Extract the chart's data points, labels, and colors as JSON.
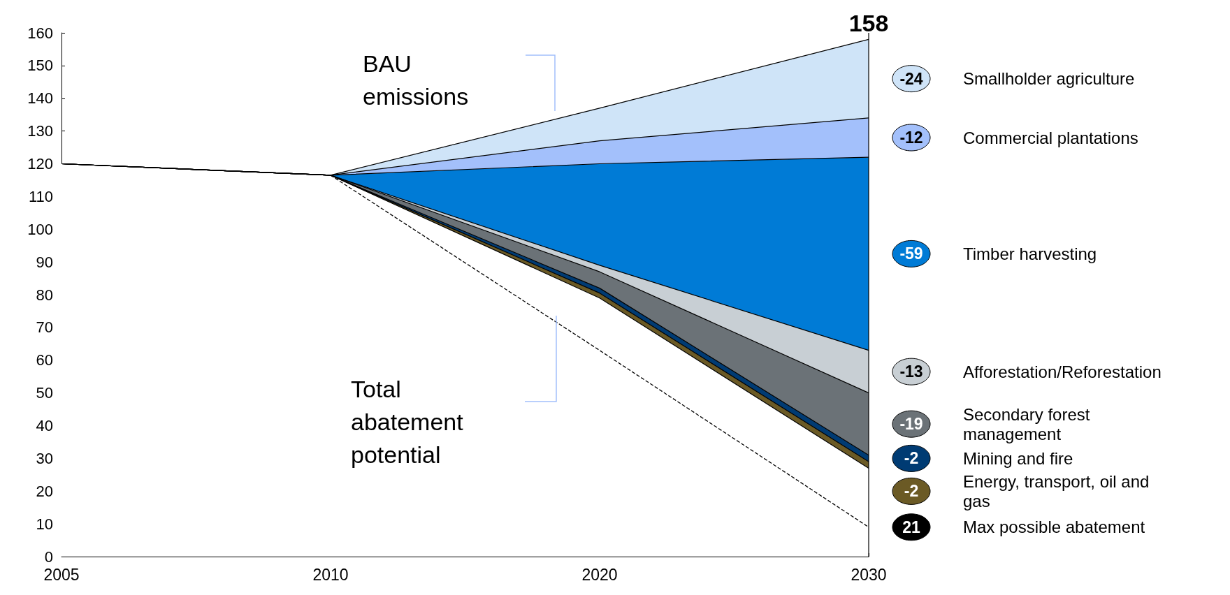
{
  "chart_data": {
    "type": "area",
    "stacked": true,
    "categories": [
      "2005",
      "2010",
      "2020",
      "2030"
    ],
    "ylim": [
      0,
      160
    ],
    "yticks": [
      0,
      10,
      20,
      30,
      40,
      50,
      60,
      70,
      80,
      90,
      100,
      110,
      120,
      130,
      140,
      150,
      160
    ],
    "grid": false,
    "series": [
      {
        "color": "#ffffff",
        "values": [
          120,
          116.5,
          79,
          27
        ]
      },
      {
        "name": "Energy, transport, oil and gas",
        "color": "#6b5a25",
        "values": [
          0,
          0,
          1.5,
          2
        ]
      },
      {
        "name": "Mining and fire",
        "color": "#003b73",
        "values": [
          0,
          0,
          1.5,
          2
        ]
      },
      {
        "name": "Secondary forest management",
        "color": "#6b7277",
        "values": [
          0,
          0,
          5,
          19
        ]
      },
      {
        "name": "Afforestation/Reforestation",
        "color": "#c8cfd4",
        "values": [
          0,
          0,
          2,
          13
        ]
      },
      {
        "name": "Timber harvesting",
        "color": "#007bd6",
        "values": [
          0,
          0,
          31,
          59
        ]
      },
      {
        "name": "Commercial plantations",
        "color": "#a3c0fb",
        "values": [
          0,
          0,
          7,
          12
        ]
      },
      {
        "name": "Smallholder agriculture",
        "color": "#cfe4f8",
        "values": [
          0,
          0,
          10,
          24
        ]
      },
      {
        "name": "Max possible abatement",
        "type": "line",
        "line_style": "dashed",
        "color": "#000000",
        "values": [
          null,
          116.5,
          63,
          9
        ]
      }
    ],
    "legend": "right",
    "annotations": [
      {
        "text": "158",
        "x": "2030",
        "y": 158
      },
      "BAU emissions",
      "Total abatement potential",
      "-2",
      "-2",
      "-19",
      "-13",
      "-59",
      "-12",
      "-24",
      "21"
    ]
  }
}
